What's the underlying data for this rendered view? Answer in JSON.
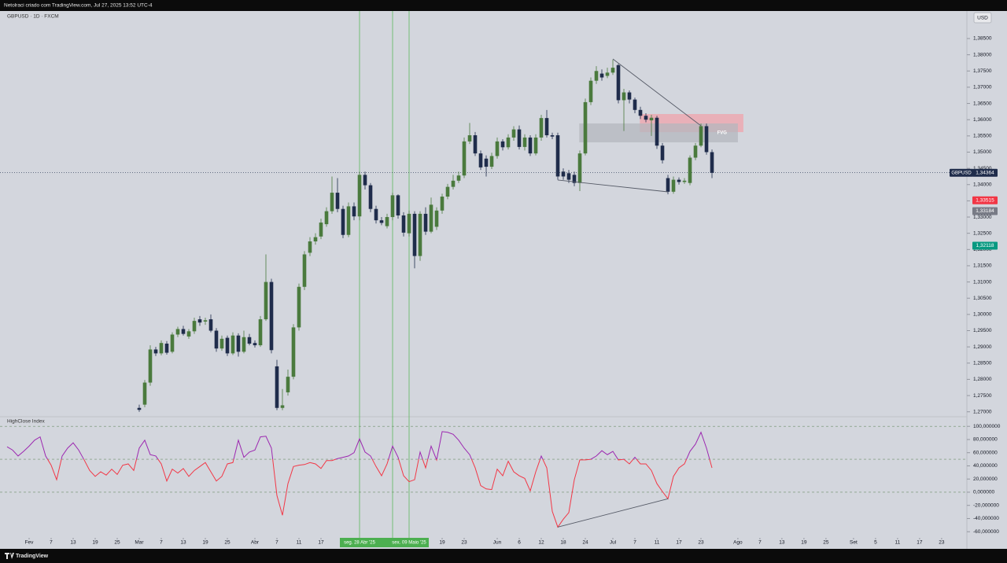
{
  "header": {
    "attribution": "Netolraci criado com TradingView.com, Jul 27, 2025 13:52 UTC-4",
    "symbol": "GBPUSD · 1D · FXCM",
    "currency": "USD"
  },
  "footer": {
    "brand": "TradingView"
  },
  "chart_data": [
    {
      "type": "candlestick",
      "xlim": [
        -0.57,
        174.14
      ],
      "xticks": [
        {
          "value": 4,
          "label": "Fev"
        },
        {
          "value": 8,
          "label": "7"
        },
        {
          "value": 12,
          "label": "13"
        },
        {
          "value": 16,
          "label": "19"
        },
        {
          "value": 20,
          "label": "25"
        },
        {
          "value": 24,
          "label": "Mar"
        },
        {
          "value": 28,
          "label": "7"
        },
        {
          "value": 32,
          "label": "13"
        },
        {
          "value": 36,
          "label": "19"
        },
        {
          "value": 40,
          "label": "25"
        },
        {
          "value": 45,
          "label": "Abr"
        },
        {
          "value": 49,
          "label": "7"
        },
        {
          "value": 53,
          "label": "11"
        },
        {
          "value": 57,
          "label": "17"
        },
        {
          "value": 79,
          "label": "19"
        },
        {
          "value": 83,
          "label": "23"
        },
        {
          "value": 89,
          "label": "Jun"
        },
        {
          "value": 93,
          "label": "6"
        },
        {
          "value": 97,
          "label": "12"
        },
        {
          "value": 101,
          "label": "18"
        },
        {
          "value": 105,
          "label": "24"
        },
        {
          "value": 110,
          "label": "Jul"
        },
        {
          "value": 114,
          "label": "7"
        },
        {
          "value": 118,
          "label": "11"
        },
        {
          "value": 122,
          "label": "17"
        },
        {
          "value": 126,
          "label": "23"
        },
        {
          "value": 132.7,
          "label": "Ago"
        },
        {
          "value": 136.7,
          "label": "7"
        },
        {
          "value": 140.7,
          "label": "13"
        },
        {
          "value": 144.7,
          "label": "19"
        },
        {
          "value": 148.7,
          "label": "25"
        },
        {
          "value": 153.7,
          "label": "Set"
        },
        {
          "value": 157.7,
          "label": "5"
        },
        {
          "value": 161.7,
          "label": "11"
        },
        {
          "value": 165.7,
          "label": "17"
        },
        {
          "value": 169.7,
          "label": "23"
        }
      ],
      "ylim": [
        1.26896,
        1.39348
      ],
      "yticks": [
        {
          "value": 1.27,
          "label": "1,27000"
        },
        {
          "value": 1.275,
          "label": "1,27500"
        },
        {
          "value": 1.28,
          "label": "1,28000"
        },
        {
          "value": 1.285,
          "label": "1,28500"
        },
        {
          "value": 1.29,
          "label": "1,29000"
        },
        {
          "value": 1.295,
          "label": "1,29500"
        },
        {
          "value": 1.3,
          "label": "1,30000"
        },
        {
          "value": 1.305,
          "label": "1,30500"
        },
        {
          "value": 1.31,
          "label": "1,31000"
        },
        {
          "value": 1.315,
          "label": "1,31500"
        },
        {
          "value": 1.32,
          "label": "1,32000"
        },
        {
          "value": 1.325,
          "label": "1,32500"
        },
        {
          "value": 1.33,
          "label": "1,33000"
        },
        {
          "value": 1.335,
          "label": "1,33500"
        },
        {
          "value": 1.34,
          "label": "1,34000"
        },
        {
          "value": 1.345,
          "label": "1,34500"
        },
        {
          "value": 1.35,
          "label": "1,35000"
        },
        {
          "value": 1.355,
          "label": "1,35500"
        },
        {
          "value": 1.36,
          "label": "1,36000"
        },
        {
          "value": 1.365,
          "label": "1,36500"
        },
        {
          "value": 1.37,
          "label": "1,37000"
        },
        {
          "value": 1.375,
          "label": "1,37500"
        },
        {
          "value": 1.38,
          "label": "1,38000"
        },
        {
          "value": 1.385,
          "label": "1,38500"
        }
      ],
      "open": [
        null,
        null,
        null,
        null,
        null,
        null,
        null,
        null,
        null,
        null,
        null,
        null,
        null,
        null,
        null,
        null,
        null,
        null,
        null,
        null,
        null,
        null,
        null,
        null,
        1.2712,
        1.2722,
        1.279,
        1.2892,
        1.288,
        1.291,
        1.2885,
        1.2938,
        1.2955,
        1.2932,
        1.2948,
        1.2985,
        1.2978,
        1.2985,
        1.295,
        1.2895,
        1.2928,
        1.288,
        1.2935,
        1.2885,
        1.293,
        1.2912,
        1.2905,
        1.2985,
        1.31,
        1.284,
        1.2712,
        1.276,
        1.2808,
        1.296,
        1.3085,
        1.319,
        1.3225,
        1.324,
        1.3278,
        1.3318,
        1.3375,
        1.3325,
        1.3245,
        1.3333,
        1.3302,
        1.343,
        1.3398,
        1.3325,
        1.329,
        1.3272,
        1.33,
        1.3367,
        1.3305,
        1.325,
        1.331,
        1.318,
        1.331,
        1.3255,
        1.327,
        1.332,
        1.3363,
        1.3393,
        1.3412,
        1.3428,
        1.3533,
        1.3552,
        1.3496,
        1.348,
        1.3455,
        1.3488,
        1.3533,
        1.3515,
        1.3545,
        1.357,
        1.3516,
        1.3545,
        1.3496,
        1.3545,
        1.3605,
        1.3552,
        1.3552,
        1.344,
        1.3435,
        1.343,
        1.3405,
        1.3496,
        1.3654,
        1.372,
        1.3742,
        1.3735,
        1.3745,
        1.3768,
        1.366,
        1.3684,
        1.3662,
        1.363,
        1.3612,
        1.3598,
        1.3606,
        1.352,
        1.342,
        1.3378,
        1.3415,
        1.3408,
        1.3405,
        1.3483,
        1.352,
        1.358,
        1.35
      ],
      "high": [
        null,
        null,
        null,
        null,
        null,
        null,
        null,
        null,
        null,
        null,
        null,
        null,
        null,
        null,
        null,
        null,
        null,
        null,
        null,
        null,
        null,
        null,
        null,
        null,
        1.2722,
        1.2798,
        1.2905,
        1.29,
        1.292,
        1.2918,
        1.2945,
        1.2962,
        1.2965,
        1.2955,
        1.299,
        1.2995,
        1.299,
        1.3,
        1.2958,
        1.2935,
        1.2935,
        1.2945,
        1.2942,
        1.295,
        1.294,
        1.292,
        1.2995,
        1.3185,
        1.311,
        1.286,
        1.277,
        1.283,
        1.297,
        1.3095,
        1.3195,
        1.3238,
        1.325,
        1.3295,
        1.333,
        1.3425,
        1.342,
        1.3335,
        1.3345,
        1.3345,
        1.344,
        1.344,
        1.3405,
        1.3335,
        1.33,
        1.331,
        1.3375,
        1.337,
        1.3315,
        1.332,
        1.3318,
        1.3318,
        1.333,
        1.336,
        1.333,
        1.3372,
        1.3402,
        1.343,
        1.344,
        1.3545,
        1.359,
        1.3562,
        1.3505,
        1.349,
        1.3498,
        1.3545,
        1.354,
        1.3555,
        1.358,
        1.3582,
        1.3555,
        1.3552,
        1.3555,
        1.3615,
        1.363,
        1.356,
        1.356,
        1.345,
        1.3445,
        1.344,
        1.3505,
        1.3665,
        1.373,
        1.3765,
        1.3755,
        1.376,
        1.3785,
        1.3772,
        1.3695,
        1.369,
        1.3668,
        1.364,
        1.362,
        1.3615,
        1.3612,
        1.3528,
        1.343,
        1.3425,
        1.3422,
        1.342,
        1.349,
        1.3528,
        1.3588,
        1.3588,
        1.3508
      ],
      "low": [
        null,
        null,
        null,
        null,
        null,
        null,
        null,
        null,
        null,
        null,
        null,
        null,
        null,
        null,
        null,
        null,
        null,
        null,
        null,
        null,
        null,
        null,
        null,
        null,
        1.27,
        1.2714,
        1.278,
        1.2872,
        1.2874,
        1.2876,
        1.288,
        1.293,
        1.2935,
        1.2925,
        1.294,
        1.2965,
        1.2968,
        1.2945,
        1.2885,
        1.2888,
        1.2872,
        1.2875,
        1.287,
        1.288,
        1.2905,
        1.2898,
        1.29,
        1.298,
        1.288,
        1.2705,
        1.2705,
        1.275,
        1.28,
        1.295,
        1.3075,
        1.318,
        1.3215,
        1.3232,
        1.327,
        1.331,
        1.3315,
        1.3235,
        1.3238,
        1.329,
        1.329,
        1.3385,
        1.3315,
        1.328,
        1.3275,
        1.3265,
        1.329,
        1.3295,
        1.324,
        1.324,
        1.3142,
        1.3165,
        1.3245,
        1.325,
        1.326,
        1.331,
        1.3355,
        1.3385,
        1.3405,
        1.342,
        1.3525,
        1.3488,
        1.3445,
        1.3425,
        1.3448,
        1.348,
        1.3505,
        1.3508,
        1.3535,
        1.3508,
        1.3505,
        1.3488,
        1.349,
        1.3535,
        1.3545,
        1.354,
        1.3415,
        1.3415,
        1.3405,
        1.3395,
        1.338,
        1.349,
        1.3645,
        1.371,
        1.372,
        1.3728,
        1.3738,
        1.365,
        1.3565,
        1.365,
        1.362,
        1.3602,
        1.3592,
        1.355,
        1.351,
        1.3465,
        1.337,
        1.3372,
        1.34,
        1.3402,
        1.3398,
        1.3475,
        1.3515,
        1.3492,
        1.342
      ],
      "close": [
        null,
        null,
        null,
        null,
        null,
        null,
        null,
        null,
        null,
        null,
        null,
        null,
        null,
        null,
        null,
        null,
        null,
        null,
        null,
        null,
        null,
        null,
        null,
        null,
        1.2706,
        1.279,
        1.2892,
        1.288,
        1.2912,
        1.2882,
        1.2938,
        1.2955,
        1.294,
        1.2948,
        1.298,
        1.2975,
        1.2982,
        1.295,
        1.2895,
        1.2925,
        1.288,
        1.2935,
        1.2885,
        1.293,
        1.291,
        1.2905,
        1.2985,
        1.31,
        1.289,
        1.2712,
        1.272,
        1.2808,
        1.296,
        1.3085,
        1.3185,
        1.3225,
        1.3238,
        1.3283,
        1.3318,
        1.3375,
        1.3325,
        1.3245,
        1.3333,
        1.3302,
        1.343,
        1.3398,
        1.3325,
        1.329,
        1.3282,
        1.33,
        1.3367,
        1.3305,
        1.3252,
        1.331,
        1.318,
        1.331,
        1.3255,
        1.3338,
        1.332,
        1.3363,
        1.3393,
        1.3412,
        1.3428,
        1.3533,
        1.3552,
        1.3496,
        1.3453,
        1.3455,
        1.3488,
        1.3533,
        1.3515,
        1.3545,
        1.357,
        1.3516,
        1.3545,
        1.3496,
        1.3545,
        1.3605,
        1.3552,
        1.3548,
        1.3425,
        1.3425,
        1.3415,
        1.3405,
        1.3496,
        1.3654,
        1.372,
        1.375,
        1.373,
        1.3745,
        1.376,
        1.366,
        1.3684,
        1.3662,
        1.363,
        1.3612,
        1.36,
        1.3606,
        1.352,
        1.3475,
        1.3378,
        1.3415,
        1.3408,
        1.3412,
        1.3483,
        1.352,
        1.358,
        1.35,
        1.34364
      ],
      "up_color": "#4a7a3d",
      "down_color": "#1f2c4b",
      "last_price": {
        "name": "GBPUSD",
        "value": 1.34364,
        "label": "1,34364",
        "color": "#1f2c4b"
      },
      "price_labels": [
        {
          "value": 1.33515,
          "label": "1,33515",
          "color": "#f23645"
        },
        {
          "value": 1.33184,
          "label": "1,33184",
          "color": "#787b86"
        },
        {
          "value": 1.32118,
          "label": "1,32118",
          "color": "#089981"
        }
      ],
      "vlines": [
        64,
        70,
        73
      ],
      "vline_color": "#5cb85c",
      "range_label": {
        "start": {
          "x": 64,
          "label": "seg. 28 Abr '25"
        },
        "end": {
          "x": 73,
          "label": "sex. 09 Maio '25"
        }
      },
      "trendlines": [
        {
          "x": [
            110,
            126
          ],
          "y": [
            1.3787,
            1.35811
          ]
        },
        {
          "x": [
            100,
            120
          ],
          "y": [
            1.3414,
            1.33776
          ]
        }
      ],
      "zones": [
        {
          "x": [
            114.9,
            133.7
          ],
          "y": [
            1.36174,
            1.35617
          ],
          "color": "#f0a3ab"
        },
        {
          "x": [
            103.9,
            132.7
          ],
          "y": [
            1.35884,
            1.35302
          ],
          "color": "#b4b7be",
          "label": "FVG"
        }
      ]
    },
    {
      "type": "line",
      "title": "HighClose Index",
      "ylim": [
        -69.3,
        112.2
      ],
      "yticks": [
        {
          "value": 100,
          "label": "100,000000"
        },
        {
          "value": 80,
          "label": "80,000000"
        },
        {
          "value": 60,
          "label": "60,000000"
        },
        {
          "value": 40,
          "label": "40,000000"
        },
        {
          "value": 20,
          "label": "20,000000"
        },
        {
          "value": 0,
          "label": "0,000000"
        },
        {
          "value": -20,
          "label": "-20,000000"
        },
        {
          "value": -40,
          "label": "-40,000000"
        },
        {
          "value": -60,
          "label": "-60,000000"
        }
      ],
      "values": [
        69,
        64,
        55,
        62,
        70,
        79,
        84,
        55,
        41,
        19,
        55,
        67,
        75,
        64,
        49,
        33,
        24,
        31,
        26,
        35,
        27,
        41,
        43,
        33,
        67,
        79,
        57,
        55,
        43,
        17,
        35,
        29,
        36,
        24,
        33,
        39,
        45,
        31,
        17,
        24,
        43,
        45,
        79,
        53,
        61,
        64,
        84,
        85,
        67,
        -5,
        -35,
        13,
        39,
        41,
        42,
        45,
        43,
        36,
        48,
        48,
        51,
        53,
        55,
        60,
        81,
        61,
        55,
        39,
        25,
        43,
        70,
        53,
        25,
        16,
        19,
        61,
        37,
        70,
        49,
        92,
        91,
        88,
        79,
        67,
        57,
        37,
        10,
        5,
        4,
        35,
        25,
        47,
        31,
        25,
        21,
        2,
        31,
        55,
        37,
        -29,
        -53,
        -41,
        -31,
        19,
        49,
        49,
        50,
        55,
        63,
        57,
        62,
        49,
        50,
        43,
        53,
        43,
        43,
        33,
        13,
        1,
        -10,
        24,
        37,
        43,
        62,
        73,
        91,
        67,
        37
      ],
      "colors": {
        "above": "#9c27b0",
        "below": "#f23645"
      },
      "split_level": 50,
      "levels": [
        100,
        50,
        0
      ],
      "trendline": {
        "x": [
          100,
          120
        ],
        "y": [
          -53,
          -10
        ]
      }
    }
  ]
}
